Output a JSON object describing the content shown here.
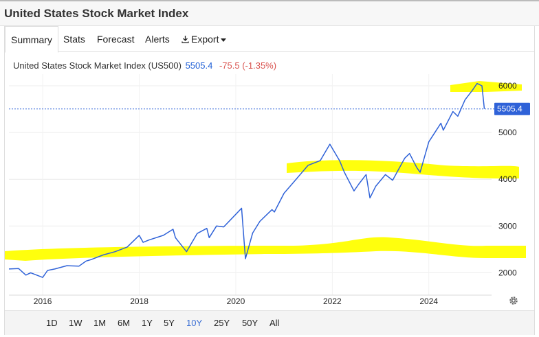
{
  "window": {
    "title": "United States Stock Market Index"
  },
  "tabs": [
    {
      "label": "Summary",
      "active": true
    },
    {
      "label": "Stats"
    },
    {
      "label": "Forecast"
    },
    {
      "label": "Alerts"
    },
    {
      "label": "Export",
      "icon": "download-icon",
      "dropdown": true
    }
  ],
  "header": {
    "name": "United States Stock Market Index (US500)",
    "price": "5505.4",
    "change": "-75.5 (-1.35%)"
  },
  "colors": {
    "line": "#2f62d8",
    "change_negative": "#d9534f",
    "price_tag": "#2f62d8",
    "highlight": "#ffff00",
    "active_range": "#3b6fd4"
  },
  "chart_data": {
    "type": "line",
    "title": "",
    "xlabel": "",
    "ylabel": "",
    "x_ticks": [
      "2016",
      "2018",
      "2020",
      "2022",
      "2024"
    ],
    "y_ticks": [
      "2000",
      "3000",
      "4000",
      "5000",
      "6000"
    ],
    "xlim": [
      2015.3,
      2025.3
    ],
    "ylim": [
      1550,
      6250
    ],
    "grid": true,
    "current_value_label": "5505.4",
    "series": [
      {
        "x": [
          2015.3,
          2015.5,
          2015.65,
          2015.75,
          2016.0,
          2016.1,
          2016.25,
          2016.5,
          2016.75,
          2016.9,
          2017.0,
          2017.25,
          2017.5,
          2017.75,
          2018.0,
          2018.08,
          2018.2,
          2018.5,
          2018.7,
          2018.75,
          2018.98,
          2019.2,
          2019.4,
          2019.45,
          2019.6,
          2019.75,
          2020.0,
          2020.12,
          2020.2,
          2020.35,
          2020.5,
          2020.75,
          2020.8,
          2021.0,
          2021.25,
          2021.5,
          2021.75,
          2021.95,
          2022.15,
          2022.25,
          2022.45,
          2022.55,
          2022.7,
          2022.78,
          2022.9,
          2023.1,
          2023.25,
          2023.5,
          2023.6,
          2023.75,
          2023.82,
          2024.0,
          2024.25,
          2024.3,
          2024.5,
          2024.6,
          2024.75,
          2024.9,
          2025.0,
          2025.1,
          2025.15
        ],
        "values": [
          2080,
          2090,
          1950,
          2000,
          1900,
          2050,
          2080,
          2150,
          2140,
          2250,
          2280,
          2380,
          2450,
          2550,
          2800,
          2650,
          2700,
          2800,
          2930,
          2750,
          2450,
          2840,
          2950,
          2750,
          3000,
          2980,
          3250,
          3380,
          2300,
          2850,
          3100,
          3350,
          3300,
          3700,
          4000,
          4300,
          4400,
          4750,
          4400,
          4150,
          3750,
          3900,
          4100,
          3600,
          3850,
          4100,
          3980,
          4450,
          4550,
          4250,
          4150,
          4800,
          5200,
          5050,
          5450,
          5350,
          5700,
          5900,
          6050,
          6000,
          5505
        ]
      }
    ],
    "annotations": [
      {
        "type": "highlight",
        "level": "6000"
      },
      {
        "type": "highlight",
        "level": "4000"
      },
      {
        "type": "highlight",
        "level": "2000"
      }
    ]
  },
  "ranges": [
    {
      "label": "1D"
    },
    {
      "label": "1W"
    },
    {
      "label": "1M"
    },
    {
      "label": "6M"
    },
    {
      "label": "1Y"
    },
    {
      "label": "5Y"
    },
    {
      "label": "10Y",
      "active": true
    },
    {
      "label": "25Y"
    },
    {
      "label": "50Y"
    },
    {
      "label": "All"
    }
  ]
}
